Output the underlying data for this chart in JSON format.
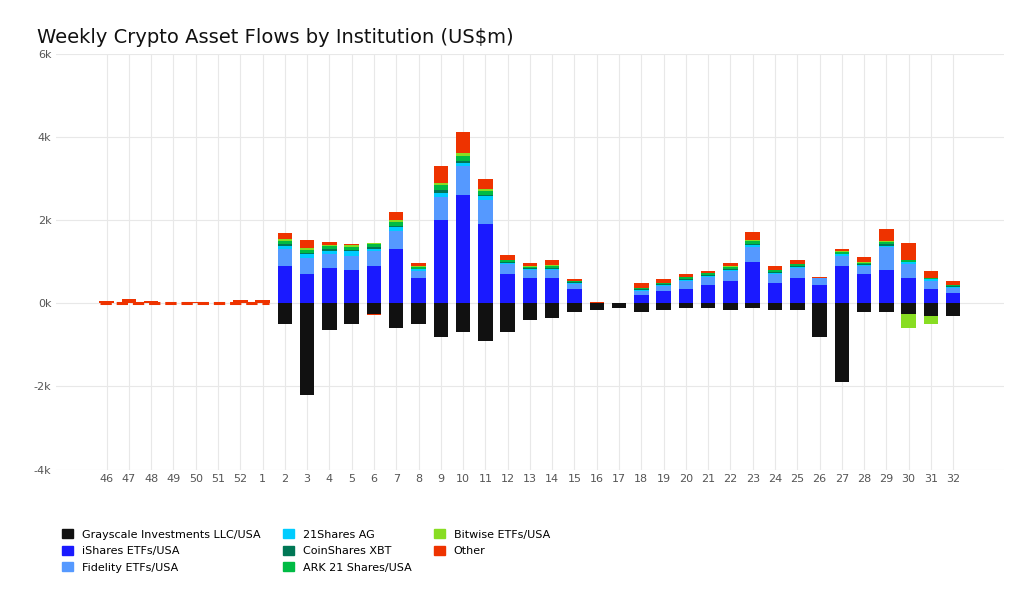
{
  "title": "Weekly Crypto Asset Flows by Institution (US$m)",
  "weeks": [
    46,
    47,
    48,
    49,
    50,
    51,
    52,
    1,
    2,
    3,
    4,
    5,
    6,
    7,
    8,
    9,
    10,
    11,
    12,
    13,
    14,
    15,
    16,
    17,
    18,
    19,
    20,
    21,
    22,
    23,
    24,
    25,
    26,
    27,
    28,
    29,
    30,
    31,
    32
  ],
  "ylim": [
    -4000,
    6000
  ],
  "yticks": [
    -4000,
    -2000,
    0,
    2000,
    4000,
    6000
  ],
  "ytick_labels": [
    "-4k",
    "-2k",
    "0k",
    "2k",
    "4k",
    "6k"
  ],
  "background_color": "#ffffff",
  "grid_color": "#e8e8e8",
  "series": {
    "Grayscale Investments LLC/USA": {
      "color": "#111111",
      "data": [
        0,
        0,
        0,
        0,
        0,
        0,
        0,
        0,
        -500,
        -2200,
        -650,
        -500,
        -250,
        -600,
        -500,
        -800,
        -700,
        -900,
        -700,
        -400,
        -350,
        -200,
        -150,
        -100,
        -200,
        -150,
        -100,
        -100,
        -150,
        -100,
        -150,
        -150,
        -800,
        -1900,
        -200,
        -200,
        -250,
        -300,
        -300
      ]
    },
    "iShares ETFs/USA": {
      "color": "#1a1aff",
      "data": [
        0,
        0,
        0,
        0,
        0,
        0,
        0,
        0,
        900,
        700,
        850,
        800,
        900,
        1300,
        600,
        2000,
        2600,
        1900,
        700,
        600,
        600,
        350,
        0,
        0,
        200,
        300,
        350,
        450,
        550,
        1000,
        500,
        600,
        450,
        900,
        700,
        800,
        600,
        350,
        250
      ]
    },
    "Fidelity ETFs/USA": {
      "color": "#5599ff",
      "data": [
        0,
        0,
        0,
        0,
        0,
        0,
        0,
        0,
        400,
        400,
        350,
        350,
        350,
        450,
        180,
        550,
        700,
        600,
        250,
        200,
        200,
        120,
        0,
        0,
        100,
        130,
        180,
        180,
        220,
        350,
        200,
        250,
        150,
        250,
        200,
        550,
        350,
        200,
        120
      ]
    },
    "21Shares AG": {
      "color": "#00ccff",
      "data": [
        0,
        0,
        0,
        0,
        0,
        0,
        0,
        0,
        80,
        80,
        70,
        100,
        70,
        80,
        40,
        120,
        90,
        80,
        30,
        30,
        40,
        30,
        0,
        0,
        20,
        25,
        35,
        35,
        40,
        60,
        35,
        35,
        0,
        30,
        30,
        40,
        35,
        30,
        25
      ]
    },
    "CoinShares XBT": {
      "color": "#007755",
      "data": [
        0,
        0,
        0,
        0,
        0,
        0,
        0,
        0,
        40,
        35,
        35,
        40,
        40,
        40,
        20,
        60,
        50,
        40,
        20,
        15,
        20,
        15,
        0,
        0,
        15,
        15,
        20,
        20,
        25,
        30,
        20,
        20,
        0,
        20,
        20,
        30,
        20,
        15,
        15
      ]
    },
    "ARK 21 Shares/USA": {
      "color": "#00bb44",
      "data": [
        0,
        0,
        0,
        0,
        0,
        0,
        0,
        0,
        80,
        80,
        80,
        80,
        70,
        90,
        40,
        120,
        120,
        90,
        40,
        35,
        40,
        25,
        0,
        0,
        25,
        25,
        40,
        40,
        40,
        65,
        40,
        40,
        0,
        35,
        30,
        50,
        40,
        25,
        25
      ]
    },
    "Bitwise ETFs/USA": {
      "color": "#88dd22",
      "data": [
        0,
        0,
        0,
        0,
        0,
        0,
        0,
        0,
        40,
        30,
        25,
        25,
        25,
        40,
        15,
        55,
        55,
        40,
        15,
        15,
        15,
        8,
        0,
        0,
        8,
        8,
        15,
        15,
        15,
        25,
        15,
        15,
        0,
        15,
        15,
        25,
        -350,
        -200,
        8
      ]
    },
    "Other": {
      "color": "#ee3300",
      "data": [
        50,
        100,
        50,
        20,
        30,
        20,
        80,
        80,
        150,
        200,
        80,
        30,
        -30,
        200,
        70,
        400,
        500,
        250,
        100,
        80,
        120,
        40,
        40,
        20,
        120,
        80,
        80,
        40,
        80,
        200,
        80,
        80,
        40,
        60,
        120,
        300,
        400,
        150,
        100
      ]
    }
  }
}
